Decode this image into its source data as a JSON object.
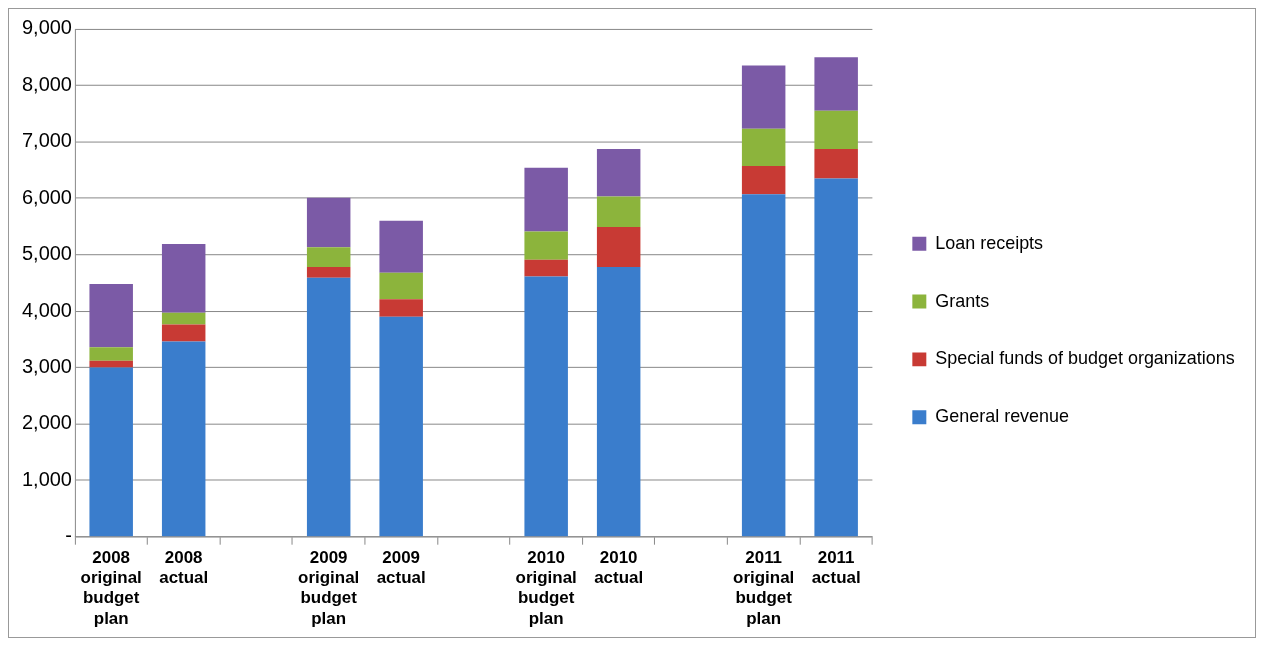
{
  "chart_data": {
    "type": "bar",
    "stacked": true,
    "categories": [
      "2008 original budget plan",
      "2008 actual",
      null,
      "2009 original budget plan",
      "2009 actual",
      null,
      "2010 original budget plan",
      "2010 actual",
      null,
      "2011 original budget plan",
      "2011 actual"
    ],
    "series": [
      {
        "name": "General revenue",
        "color": "#3a7dcc",
        "values": [
          3000,
          3460,
          null,
          4590,
          3900,
          null,
          4610,
          4780,
          null,
          6070,
          6350
        ]
      },
      {
        "name": "Special funds of budget organizations",
        "color": "#c83a34",
        "values": [
          120,
          300,
          null,
          190,
          310,
          null,
          300,
          710,
          null,
          500,
          520
        ]
      },
      {
        "name": "Grants",
        "color": "#8cb43c",
        "values": [
          240,
          210,
          null,
          350,
          470,
          null,
          500,
          540,
          null,
          660,
          680
        ]
      },
      {
        "name": "Loan receipts",
        "color": "#7b5aa6",
        "values": [
          1120,
          1220,
          null,
          880,
          920,
          null,
          1130,
          840,
          null,
          1120,
          950
        ]
      }
    ],
    "ylim": [
      0,
      9000
    ],
    "yticks": [
      {
        "value": 0,
        "label": "-"
      },
      {
        "value": 1000,
        "label": "1,000"
      },
      {
        "value": 2000,
        "label": "2,000"
      },
      {
        "value": 3000,
        "label": "3,000"
      },
      {
        "value": 4000,
        "label": "4,000"
      },
      {
        "value": 5000,
        "label": "5,000"
      },
      {
        "value": 6000,
        "label": "6,000"
      },
      {
        "value": 7000,
        "label": "7,000"
      },
      {
        "value": 8000,
        "label": "8,000"
      },
      {
        "value": 9000,
        "label": "9,000"
      }
    ],
    "grid": "y",
    "legend": "right"
  }
}
